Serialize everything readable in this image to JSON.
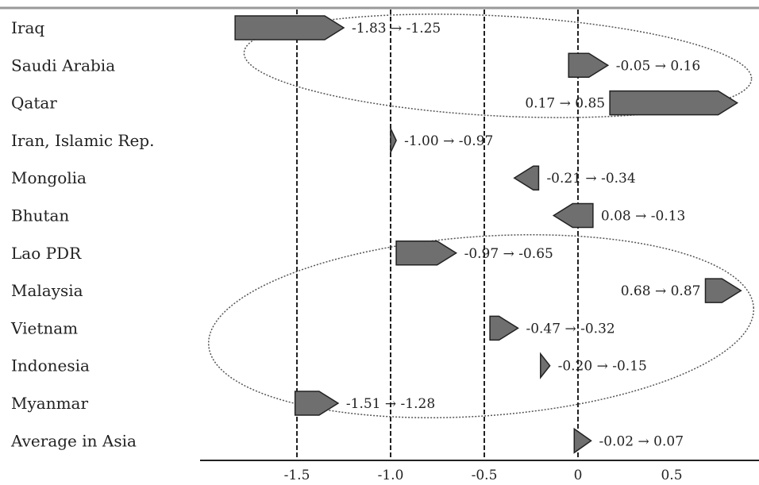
{
  "chart_data": {
    "type": "bar",
    "title": "",
    "xlabel": "",
    "ylabel": "",
    "xlim": [
      -1.95,
      0.95
    ],
    "xticks": [
      -1.5,
      -1.0,
      -0.5,
      0,
      0.5
    ],
    "xtick_labels": [
      "-1.5",
      "-1.0",
      "-0.5",
      "0",
      "0.5"
    ],
    "gridlines_at": [
      -1.5,
      -1.0,
      -0.5,
      0
    ],
    "arrow_symbol": "→",
    "rows": [
      {
        "name": "Iraq",
        "from": -1.83,
        "to": -1.25,
        "label": "-1.83 → -1.25"
      },
      {
        "name": "Saudi Arabia",
        "from": -0.05,
        "to": 0.16,
        "label": "-0.05 → 0.16"
      },
      {
        "name": "Qatar",
        "from": 0.17,
        "to": 0.85,
        "label": "0.17 → 0.85"
      },
      {
        "name": "Iran, Islamic Rep.",
        "from": -1.0,
        "to": -0.97,
        "label": "-1.00 → -0.97"
      },
      {
        "name": "Mongolia",
        "from": -0.21,
        "to": -0.34,
        "label": "-0.21 → -0.34"
      },
      {
        "name": "Bhutan",
        "from": 0.08,
        "to": -0.13,
        "label": "0.08 → -0.13"
      },
      {
        "name": "Lao PDR",
        "from": -0.97,
        "to": -0.65,
        "label": "-0.97 → -0.65"
      },
      {
        "name": "Malaysia",
        "from": 0.68,
        "to": 0.87,
        "label": "0.68 → 0.87"
      },
      {
        "name": "Vietnam",
        "from": -0.47,
        "to": -0.32,
        "label": "-0.47 → -0.32"
      },
      {
        "name": "Indonesia",
        "from": -0.2,
        "to": -0.15,
        "label": "-0.20 → -0.15"
      },
      {
        "name": "Myanmar",
        "from": -1.51,
        "to": -1.28,
        "label": "-1.51 → -1.28"
      },
      {
        "name": "Average in Asia",
        "from": -0.02,
        "to": 0.07,
        "label": "-0.02 → 0.07"
      }
    ],
    "groups_circled": [
      [
        "Iraq",
        "Saudi Arabia",
        "Qatar"
      ],
      [
        "Lao PDR",
        "Malaysia",
        "Vietnam",
        "Indonesia",
        "Myanmar"
      ]
    ],
    "colors": {
      "arrow_fill": "#6f6f6f",
      "arrow_stroke": "#222222"
    }
  }
}
